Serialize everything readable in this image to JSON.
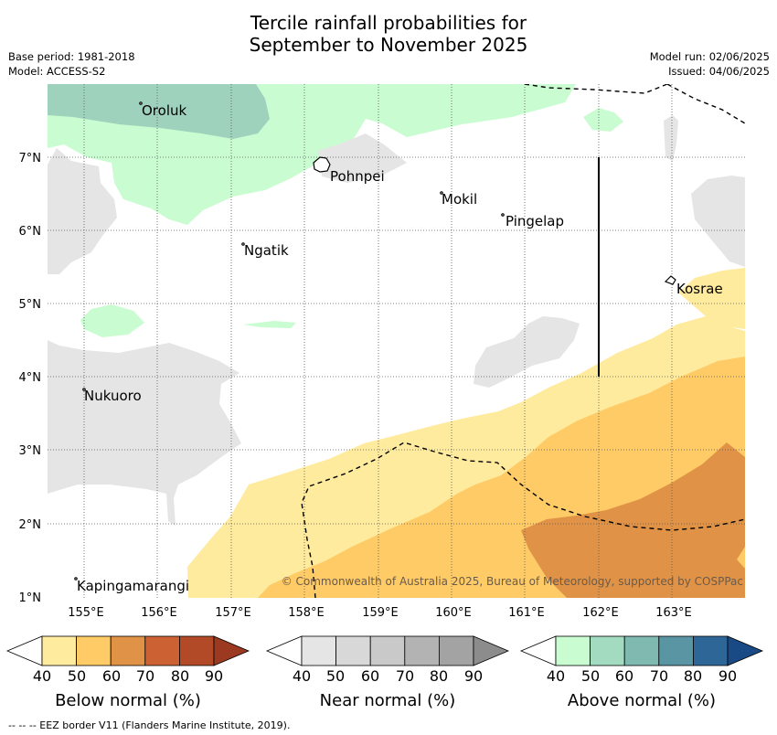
{
  "header": {
    "title_line1": "Tercile rainfall probabilities for",
    "title_line2": "September to November 2025",
    "base_period": "Base period: 1981-2018",
    "model": "Model: ACCESS-S2",
    "model_run": "Model run: 02/06/2025",
    "issued": "Issued: 04/06/2025"
  },
  "map": {
    "lat_labels": [
      "7°N",
      "6°N",
      "5°N",
      "4°N",
      "3°N",
      "2°N",
      "1°N"
    ],
    "lon_labels": [
      "155°E",
      "156°E",
      "157°E",
      "158°E",
      "159°E",
      "160°E",
      "161°E",
      "162°E",
      "163°E"
    ],
    "places": [
      "Oroluk",
      "Pohnpei",
      "Mokil",
      "Pingelap",
      "Ngatik",
      "Kosrae",
      "Nukuoro",
      "Kapingamarangi"
    ],
    "copyright": "© Commonwealth of Australia 2025, Bureau of Meteorology, supported by COSPPac"
  },
  "colorbars": {
    "ticks": [
      "40",
      "50",
      "60",
      "70",
      "80",
      "90"
    ],
    "below_label": "Below normal (%)",
    "near_label": "Near normal (%)",
    "above_label": "Above normal (%)",
    "below_colors": [
      "#ffffff",
      "#ffeb9e",
      "#fecb66",
      "#e09346",
      "#cc6233",
      "#b24a28",
      "#9c3a21"
    ],
    "near_colors": [
      "#ffffff",
      "#e5e5e5",
      "#d8d8d8",
      "#c9c9c9",
      "#b3b3b3",
      "#a3a3a3",
      "#8c8c8c"
    ],
    "above_colors": [
      "#ffffff",
      "#c9fcd0",
      "#a2dbbf",
      "#80b9b0",
      "#5a95a4",
      "#2f6698",
      "#1a4a85"
    ]
  },
  "footer": {
    "eez_note": "--  --  -- EEZ border V11 (Flanders Marine Institute, 2019)."
  }
}
